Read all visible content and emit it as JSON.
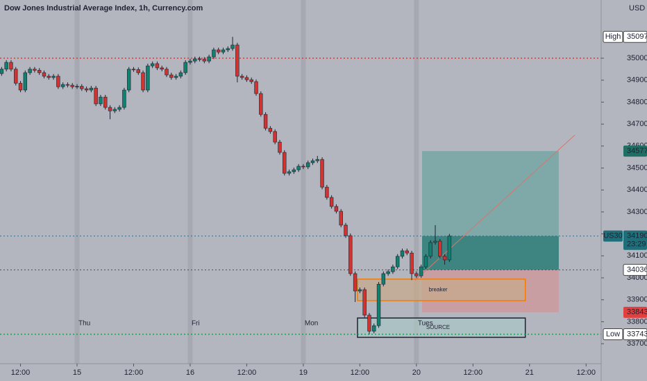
{
  "chart_data": {
    "type": "candlestick",
    "title": "Dow Jones Industrial Average Index, 1h, Currency.com",
    "currency": "USD",
    "up_color": "#11806e",
    "down_color": "#cf3431",
    "xlim": [
      -16.35,
      111.2
    ],
    "ylim": [
      33609,
      35265
    ],
    "xticks": [
      {
        "value": -12,
        "label": "12:00"
      },
      {
        "value": 0,
        "label": "15"
      },
      {
        "value": 12,
        "label": "12:00"
      },
      {
        "value": 24,
        "label": "16"
      },
      {
        "value": 36,
        "label": "12:00"
      },
      {
        "value": 48,
        "label": "19"
      },
      {
        "value": 60,
        "label": "12:00"
      },
      {
        "value": 72,
        "label": "20"
      },
      {
        "value": 84,
        "label": "12:00"
      },
      {
        "value": 96,
        "label": "21"
      },
      {
        "value": 108,
        "label": "12:00"
      }
    ],
    "yticks": [
      35000,
      34900,
      34800,
      34700,
      34600,
      34500,
      34400,
      34300,
      34200,
      34100,
      34000,
      33900,
      33800,
      33700
    ],
    "sessions": [
      {
        "x": 0,
        "label": "Thu"
      },
      {
        "x": 24,
        "label": "Fri"
      },
      {
        "x": 48,
        "label": "Mon"
      },
      {
        "x": 72,
        "label": "Tues"
      }
    ],
    "x": [
      -16,
      -15,
      -14,
      -13,
      -12,
      -11,
      -10,
      -9,
      -8,
      -7,
      -6,
      -5,
      -4,
      -3,
      -2,
      -1,
      0,
      1,
      2,
      3,
      4,
      5,
      6,
      7,
      8,
      9,
      10,
      11,
      12,
      13,
      14,
      15,
      16,
      17,
      18,
      19,
      20,
      21,
      22,
      23,
      24,
      25,
      26,
      27,
      28,
      29,
      30,
      31,
      32,
      33,
      34,
      35,
      36,
      37,
      38,
      39,
      40,
      41,
      42,
      43,
      44,
      45,
      46,
      47,
      48,
      49,
      50,
      51,
      52,
      53,
      54,
      55,
      56,
      57,
      58,
      59,
      60,
      61,
      62,
      63,
      64,
      65,
      66,
      67,
      68,
      69,
      70,
      71,
      72,
      73,
      74,
      75,
      76,
      77,
      78,
      79
    ],
    "open": [
      34930,
      34950,
      34981,
      34950,
      34886,
      34855,
      34934,
      34950,
      34945,
      34934,
      34918,
      34912,
      34918,
      34870,
      34880,
      34877,
      34870,
      34872,
      34861,
      34855,
      34864,
      34792,
      34823,
      34776,
      34760,
      34767,
      34776,
      34855,
      34950,
      34948,
      34934,
      34855,
      34965,
      34975,
      34956,
      34950,
      34924,
      34912,
      34918,
      34934,
      34981,
      34987,
      34997,
      34995,
      34987,
      35006,
      35038,
      35028,
      35038,
      35044,
      35060,
      34918,
      34912,
      34902,
      34893,
      34839,
      34744,
      34681,
      34666,
      34618,
      34571,
      34476,
      34483,
      34492,
      34508,
      34505,
      34524,
      34533,
      34539,
      34413,
      34366,
      34325,
      34303,
      34240,
      34192,
      34019,
      33940,
      33946,
      33830,
      33757,
      33782,
      33971,
      34019,
      34028,
      34050,
      34098,
      34123,
      34113,
      34019,
      34009,
      34050,
      34098,
      34161,
      34167,
      34098,
      34082
    ],
    "high": [
      34960,
      34991,
      34991,
      34960,
      34896,
      34944,
      34960,
      34960,
      34955,
      34944,
      34928,
      34928,
      34928,
      34890,
      34890,
      34887,
      34882,
      34882,
      34871,
      34874,
      34874,
      34833,
      34833,
      34786,
      34777,
      34786,
      34865,
      34960,
      34960,
      34958,
      34944,
      34975,
      34985,
      34985,
      34966,
      34960,
      34934,
      34928,
      34944,
      34991,
      34997,
      35007,
      35007,
      35005,
      35016,
      35048,
      35048,
      35048,
      35054,
      35097,
      35070,
      34928,
      34922,
      34912,
      34903,
      34849,
      34754,
      34691,
      34676,
      34628,
      34581,
      34493,
      34502,
      34518,
      34518,
      34534,
      34543,
      34555,
      34549,
      34423,
      34376,
      34335,
      34313,
      34250,
      34202,
      34029,
      33956,
      33956,
      33840,
      33792,
      33981,
      34029,
      34038,
      34060,
      34108,
      34133,
      34133,
      34123,
      34029,
      34060,
      34108,
      34171,
      34240,
      34177,
      34108,
      34200
    ],
    "low": [
      34920,
      34940,
      34940,
      34876,
      34845,
      34845,
      34924,
      34935,
      34924,
      34908,
      34902,
      34902,
      34860,
      34860,
      34867,
      34860,
      34860,
      34851,
      34845,
      34845,
      34782,
      34782,
      34766,
      34722,
      34750,
      34757,
      34766,
      34845,
      34938,
      34924,
      34845,
      34845,
      34955,
      34946,
      34940,
      34914,
      34902,
      34902,
      34908,
      34924,
      34971,
      34977,
      34985,
      34977,
      34977,
      34996,
      35018,
      35018,
      35028,
      35034,
      34890,
      34902,
      34892,
      34883,
      34829,
      34734,
      34671,
      34656,
      34608,
      34561,
      34466,
      34466,
      34473,
      34482,
      34495,
      34495,
      34514,
      34523,
      34403,
      34356,
      34315,
      34293,
      34230,
      34182,
      34009,
      33890,
      33930,
      33820,
      33743,
      33747,
      33772,
      33961,
      34009,
      34018,
      34040,
      34088,
      34103,
      33990,
      33999,
      33999,
      34040,
      34088,
      34151,
      34088,
      34060,
      34072
    ],
    "close": [
      34950,
      34981,
      34950,
      34886,
      34855,
      34934,
      34950,
      34945,
      34934,
      34918,
      34912,
      34918,
      34870,
      34880,
      34877,
      34870,
      34872,
      34861,
      34855,
      34864,
      34792,
      34823,
      34776,
      34760,
      34767,
      34776,
      34855,
      34950,
      34948,
      34934,
      34855,
      34965,
      34975,
      34956,
      34950,
      34924,
      34912,
      34918,
      34934,
      34981,
      34987,
      34997,
      34995,
      34987,
      35006,
      35038,
      35028,
      35038,
      35044,
      35060,
      34918,
      34912,
      34902,
      34893,
      34839,
      34744,
      34681,
      34666,
      34618,
      34571,
      34476,
      34483,
      34492,
      34508,
      34505,
      34524,
      34533,
      34539,
      34413,
      34366,
      34325,
      34303,
      34240,
      34192,
      34019,
      33940,
      33946,
      33830,
      33757,
      33782,
      33971,
      34019,
      34028,
      34050,
      34098,
      34123,
      34113,
      34019,
      34009,
      34050,
      34098,
      34161,
      34167,
      34098,
      34082,
      34190
    ],
    "levels": [
      {
        "value": 35000,
        "color": "#e53935"
      },
      {
        "value": 34190,
        "color": "#2b6f8a"
      },
      {
        "value": 34036,
        "color": "#4a4d57"
      },
      {
        "value": 33743,
        "color": "#1e9e50"
      }
    ],
    "position": {
      "x": [
        73.2,
        102.2
      ],
      "target": 34577,
      "entry": 34036,
      "stop": 33843,
      "current": 34190
    },
    "trend_line": {
      "x": [
        71.7,
        105.6
      ],
      "y": [
        33988,
        34650
      ],
      "color": "#d9766a"
    },
    "zones": [
      {
        "label": "breaker",
        "x": [
          59.5,
          95.1
        ],
        "y": [
          33896,
          33994
        ],
        "color": "#f57c00",
        "fill": "#c6a98c"
      },
      {
        "label": "SOURCE",
        "x": [
          59.5,
          95.1
        ],
        "y": [
          33729,
          33817
        ],
        "color": "#1e2130",
        "fill": "#a9c4c4"
      }
    ],
    "price_tags": [
      {
        "label": "High",
        "value": 35097,
        "color": "#ffffff"
      },
      {
        "value": 34577,
        "color": "#1f6f64"
      },
      {
        "label": "US30",
        "value": 34190,
        "countdown": "23:29",
        "color": "#1f6f7a"
      },
      {
        "value": 34036,
        "color": "#ffffff"
      },
      {
        "value": 33843,
        "color": "#e04040"
      },
      {
        "label": "Low",
        "value": 33743,
        "color": "#ffffff"
      }
    ]
  }
}
